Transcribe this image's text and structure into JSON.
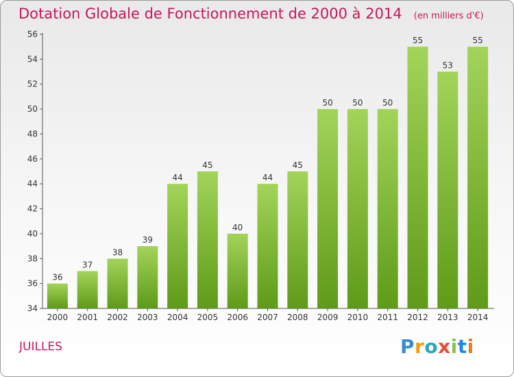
{
  "title": "Dotation Globale de Fonctionnement de 2000 à 2014",
  "unit": "(en milliers d'€)",
  "place": "JUILLES",
  "logo": {
    "text": "Proxiti",
    "letter_colors": [
      "#3b8bd0",
      "#f39c12",
      "#2aa8b8",
      "#e74c3c",
      "#8bc34a",
      "#1e88e5",
      "#e67e22"
    ]
  },
  "colors": {
    "bar_top": "#a2d45a",
    "bar_bottom": "#5f9a18",
    "accent": "#c2185b"
  },
  "chart_data": {
    "type": "bar",
    "title": "Dotation Globale de Fonctionnement de 2000 à 2014",
    "subtitle": "(en milliers d'€)",
    "xlabel": "",
    "ylabel": "",
    "categories": [
      "2000",
      "2001",
      "2002",
      "2003",
      "2004",
      "2005",
      "2006",
      "2007",
      "2008",
      "2009",
      "2010",
      "2011",
      "2012",
      "2013",
      "2014"
    ],
    "values": [
      36,
      37,
      38,
      39,
      44,
      45,
      40,
      44,
      45,
      50,
      50,
      50,
      55,
      53,
      55
    ],
    "ylim": [
      34,
      56
    ],
    "yticks": [
      34,
      36,
      38,
      40,
      42,
      44,
      46,
      48,
      50,
      52,
      54,
      56
    ],
    "grid": false,
    "legend": "none"
  }
}
